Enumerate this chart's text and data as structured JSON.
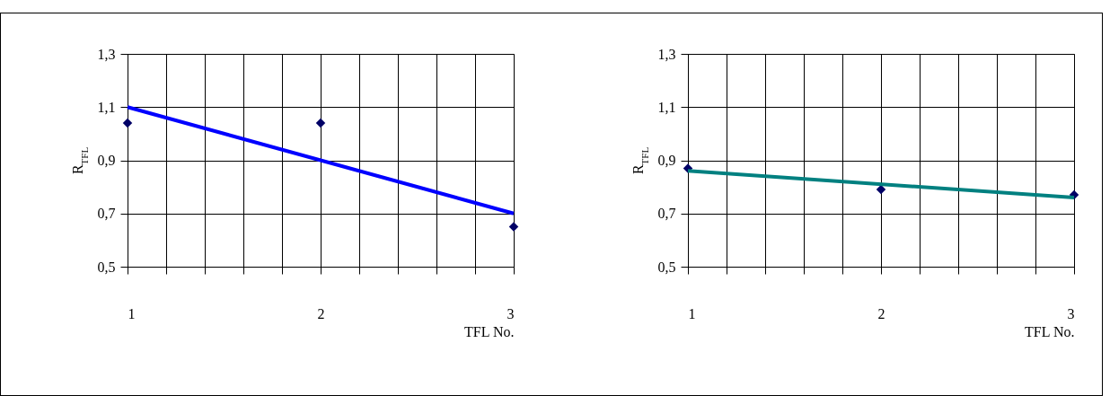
{
  "chart_data": [
    {
      "type": "scatter",
      "ylabel": "R$_{TFL}$",
      "xlabel": "TFL No.",
      "xlim": [
        1,
        3
      ],
      "ylim": [
        0.5,
        1.3
      ],
      "xticks": [
        1,
        {
          "value": 1.2,
          "label": null
        },
        {
          "value": 1.4,
          "label": null
        },
        {
          "value": 1.6,
          "label": null
        },
        {
          "value": 1.8,
          "label": null
        },
        2,
        {
          "value": 2.2,
          "label": null
        },
        {
          "value": 2.4,
          "label": null
        },
        {
          "value": 2.6,
          "label": null
        },
        {
          "value": 2.8,
          "label": null
        },
        3
      ],
      "yticks": [
        {
          "value": 0.5,
          "label": "0,5"
        },
        {
          "value": 0.7,
          "label": "0,7"
        },
        {
          "value": 0.9,
          "label": "0,9"
        },
        {
          "value": 1.1,
          "label": "1,1"
        },
        {
          "value": 1.3,
          "label": "1,3"
        }
      ],
      "grid": true,
      "series": [
        {
          "type": "line",
          "marker": "none",
          "color": "#0000ff",
          "x": [
            1,
            3
          ],
          "values": [
            1.1,
            0.7
          ]
        },
        {
          "marker": "diamond",
          "color": "#000066",
          "x": [
            1,
            2,
            3
          ],
          "values": [
            1.04,
            1.04,
            0.65
          ]
        }
      ]
    },
    {
      "type": "scatter",
      "ylabel": "R$_{TFL}$",
      "xlabel": "TFL No.",
      "xlim": [
        1,
        3
      ],
      "ylim": [
        0.5,
        1.3
      ],
      "xticks": [
        1,
        {
          "value": 1.2,
          "label": null
        },
        {
          "value": 1.4,
          "label": null
        },
        {
          "value": 1.6,
          "label": null
        },
        {
          "value": 1.8,
          "label": null
        },
        2,
        {
          "value": 2.2,
          "label": null
        },
        {
          "value": 2.4,
          "label": null
        },
        {
          "value": 2.6,
          "label": null
        },
        {
          "value": 2.8,
          "label": null
        },
        3
      ],
      "yticks": [
        {
          "value": 0.5,
          "label": "0,5"
        },
        {
          "value": 0.7,
          "label": "0,7"
        },
        {
          "value": 0.9,
          "label": "0,9"
        },
        {
          "value": 1.1,
          "label": "1,1"
        },
        {
          "value": 1.3,
          "label": "1,3"
        }
      ],
      "grid": true,
      "series": [
        {
          "marker": "diamond",
          "color": "#000066",
          "x": [
            1,
            2,
            3
          ],
          "values": [
            0.87,
            0.79,
            0.77
          ]
        },
        {
          "type": "line",
          "marker": "none",
          "color": "#008080",
          "x": [
            1,
            3
          ],
          "values": [
            0.86,
            0.76
          ]
        }
      ]
    }
  ]
}
